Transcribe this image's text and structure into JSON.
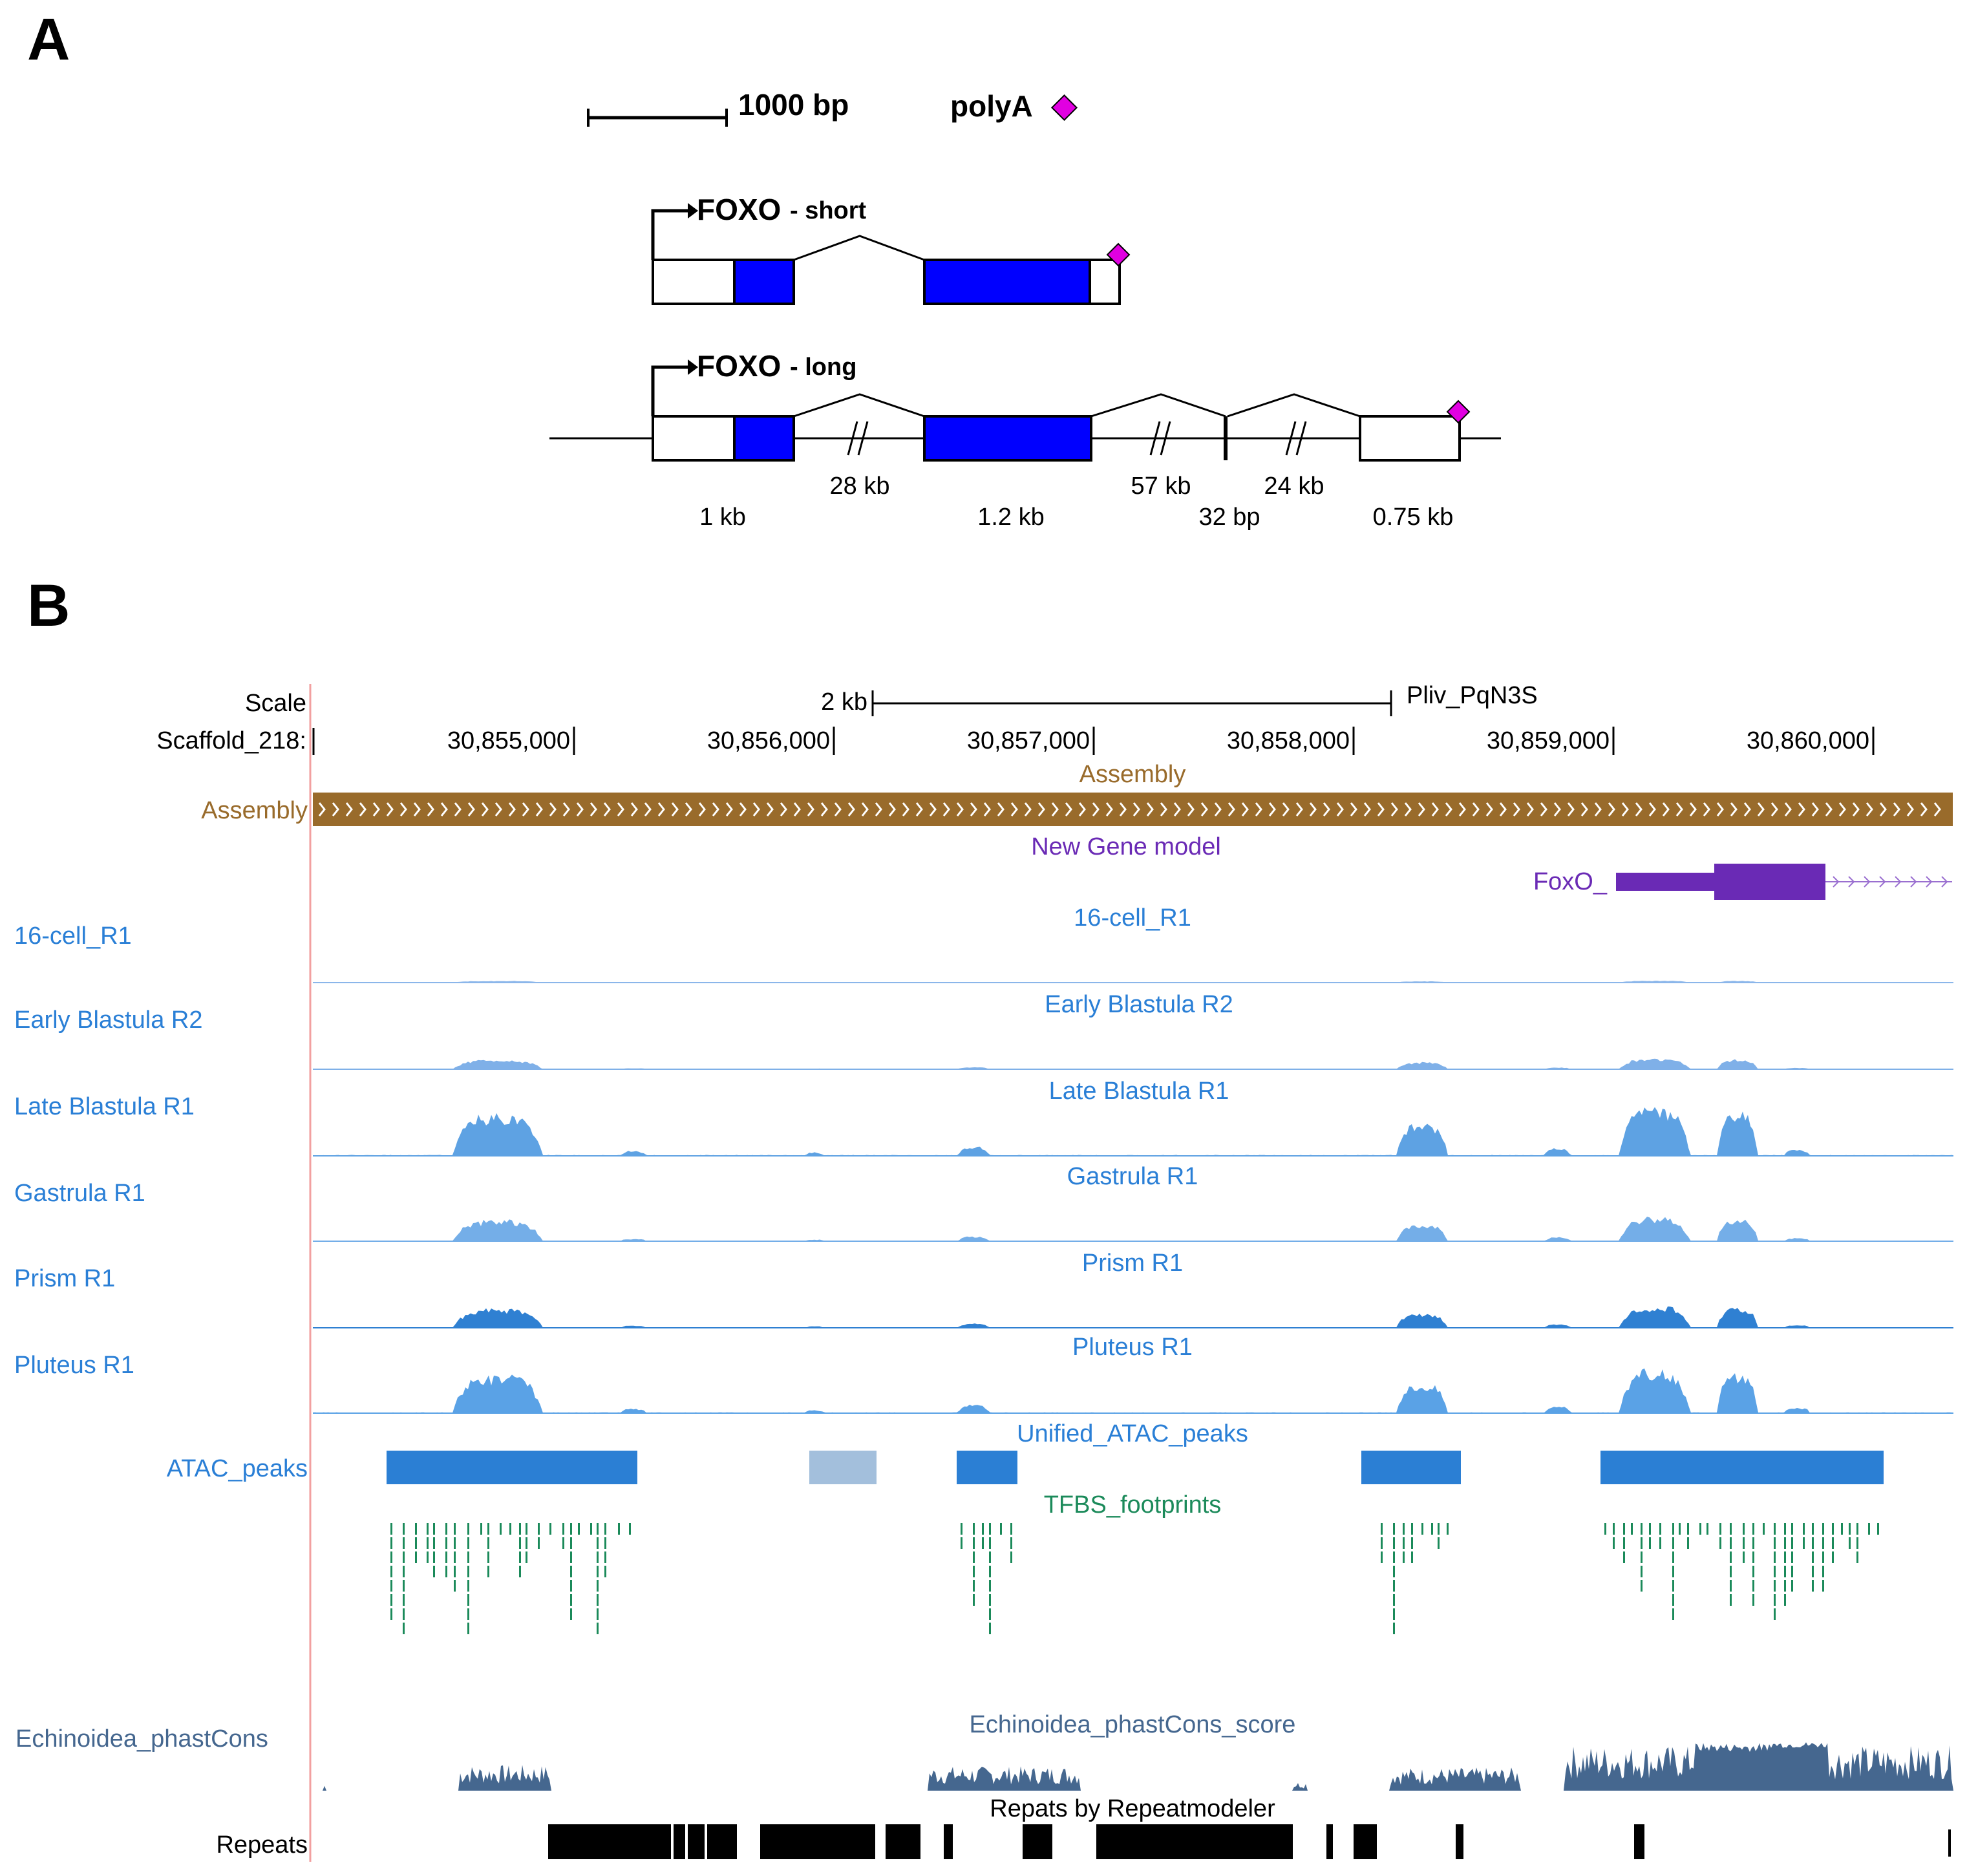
{
  "panel_a": {
    "letter": "A",
    "scale_bar_label": "1000 bp",
    "polya_label": "polyA",
    "short": {
      "name": "FOXO",
      "suffix": "- short"
    },
    "long": {
      "name": "FOXO",
      "suffix": "- long"
    },
    "segment_labels": {
      "exon1": "1 kb",
      "intron1": "28 kb",
      "exon2": "1.2 kb",
      "intron2": "57 kb",
      "exon3": "32 bp",
      "intron3": "24 kb",
      "exon4": "0.75 kb"
    },
    "colors": {
      "cds": "#0000ff",
      "polya": "#e100e1",
      "line": "#000000"
    }
  },
  "panel_b": {
    "letter": "B",
    "scale": {
      "label": "Scale",
      "bar_label": "2 kb",
      "assembly_name": "Pliv_PqN3S",
      "chrom_label": "Scaffold_218:",
      "ticks": [
        "30,855,000",
        "30,856,000",
        "30,857,000",
        "30,858,000",
        "30,859,000",
        "30,860,000"
      ]
    },
    "assembly": {
      "left_label": "Assembly",
      "title": "Assembly",
      "color": "#996b2b"
    },
    "gene_model": {
      "title": "New Gene model",
      "gene_label": "FoxO_",
      "color": "#6a2ab5"
    },
    "atac_tracks": [
      {
        "left_label": "16-cell_R1",
        "title": "16-cell_R1",
        "color": "#8bb6ea"
      },
      {
        "left_label": "Early Blastula R2",
        "title": "Early Blastula R2",
        "color": "#7fb0e8"
      },
      {
        "left_label": "Late Blastula R1",
        "title": "Late Blastula R1",
        "color": "#5ea2e3"
      },
      {
        "left_label": "Gastrula R1",
        "title": "Gastrula R1",
        "color": "#74aee8"
      },
      {
        "left_label": "Prism R1",
        "title": "Prism R1",
        "color": "#2f80d2"
      },
      {
        "left_label": "Pluteus R1",
        "title": "Pluteus R1",
        "color": "#5aa2e6"
      }
    ],
    "peaks": {
      "left_label": "ATAC_peaks",
      "title": "Unified_ATAC_peaks",
      "color": "#2b7fd4",
      "faint_color": "#a3bfdc"
    },
    "tfbs": {
      "title": "TFBS_footprints",
      "color": "#1b8a5a"
    },
    "phastcons": {
      "left_label": "Echinoidea_phastCons",
      "title": "Echinoidea_phastCons_score",
      "color": "#45678f"
    },
    "repeats": {
      "left_label": "Repeats",
      "title": "Repats by Repeatmodeler",
      "color": "#000000"
    },
    "track_text_color": "#2a7fd6"
  }
}
